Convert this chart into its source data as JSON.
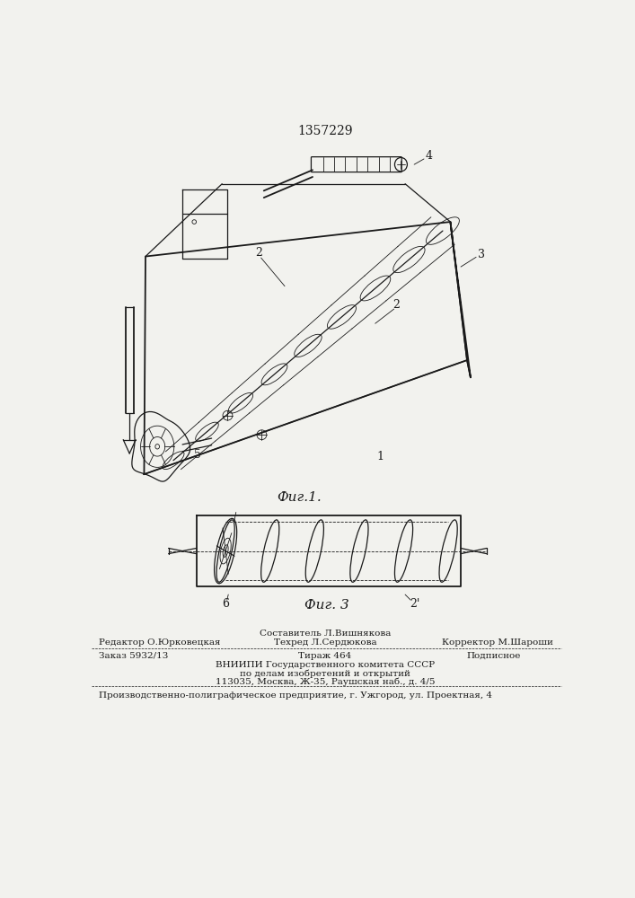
{
  "bg_color": "#f2f2ee",
  "line_color": "#1a1a1a",
  "patent_number": "1357229",
  "fig1_caption": "Фиг.1.",
  "fig3_caption": "Фиг. 3",
  "footer_line1_top": "Составитель Л.Вишнякова",
  "footer_line1_left": "Редактор О.Юрковецкая",
  "footer_line1_center": "Техред Л.Сердюкова",
  "footer_line1_right": "Корректор М.Шароши",
  "footer_line2_left": "Заказ 5932/13",
  "footer_line2_center": "Тираж 464",
  "footer_line2_right": "Подписное",
  "footer_line3": "ВНИИПИ Государственного комитета СССР",
  "footer_line4": "по делам изобретений и открытий",
  "footer_line5": "113035, Москва, Ж-35, Раушская наб., д. 4/5",
  "footer_bottom": "Производственно-полиграфическое предприятие, г. Ужгород, ул. Проектная, 4"
}
